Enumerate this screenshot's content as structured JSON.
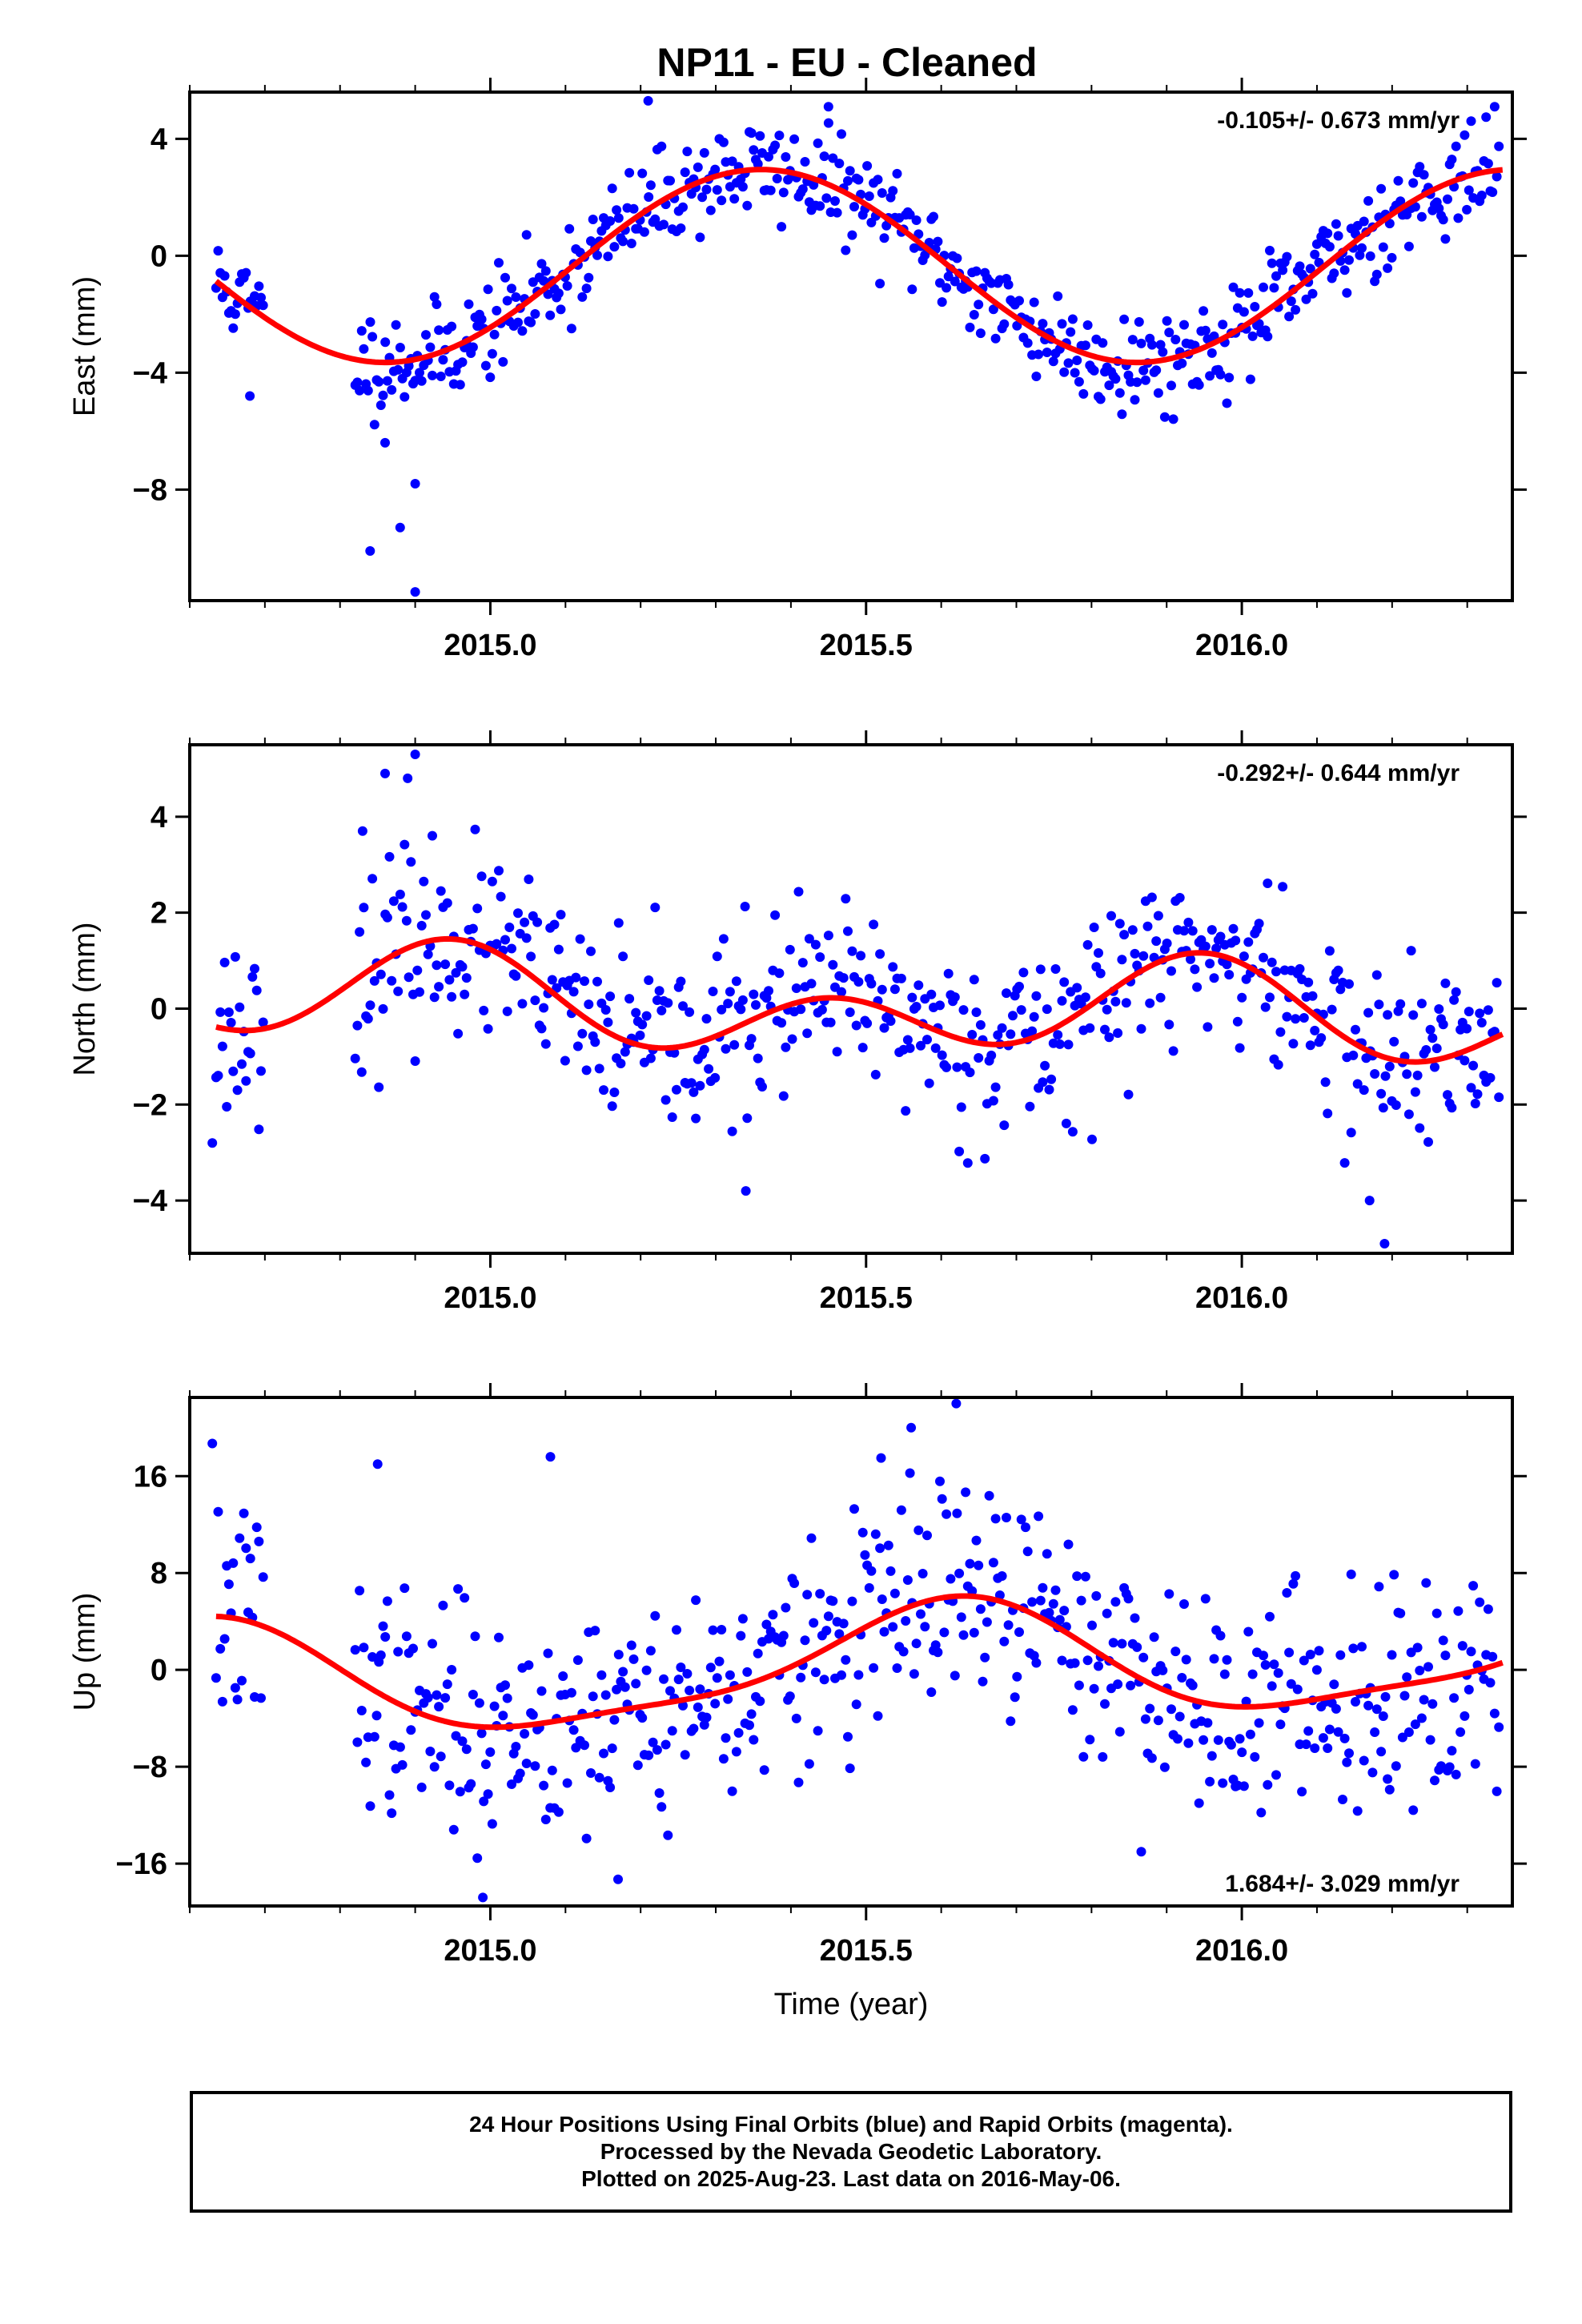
{
  "title": "NP11  - EU - Cleaned",
  "footer": {
    "lines": [
      "24 Hour Positions Using Final Orbits (blue) and Rapid Orbits (magenta).",
      "Processed by the Nevada Geodetic Laboratory.",
      "Plotted on 2025-Aug-23. Last data on 2016-May-06."
    ]
  },
  "colors": {
    "observations": "#0000ff",
    "model_fit": "#ff0000",
    "frame": "#000000"
  },
  "chart_data": [
    {
      "type": "scatter",
      "panel": "east",
      "ylabel": "East (mm)",
      "xlabel": "",
      "xlim": [
        2014.6,
        2016.36
      ],
      "ylim": [
        -11.8,
        5.6
      ],
      "xticks": [
        2015.0,
        2015.5,
        2016.0
      ],
      "xtick_labels": [
        "2015.0",
        "2015.5",
        "2016.0"
      ],
      "yticks": [
        4,
        0,
        -4,
        -8
      ],
      "yticks_labels": [
        "4",
        "0",
        "−4",
        "−8"
      ],
      "annotation": "-0.105+/- 0.673 mm/yr",
      "annotation_pos": "top-right",
      "grid": false,
      "model": {
        "offset": -0.35,
        "trend_per_year": 0.0,
        "annual_amp": 3.3,
        "annual_peak": 2015.36,
        "semi_amp": 0.0,
        "semi_peak": 2015.0
      },
      "noise_sd": 0.85,
      "seed": 11,
      "n_points": 600,
      "gap": [
        2014.7,
        2014.82
      ],
      "outliers": [
        [
          2014.84,
          -10.1
        ],
        [
          2014.9,
          -11.5
        ],
        [
          2014.88,
          -9.3
        ],
        [
          2014.9,
          -7.8
        ],
        [
          2014.86,
          -6.4
        ],
        [
          2014.68,
          -4.8
        ],
        [
          2015.21,
          5.3
        ],
        [
          2015.45,
          5.1
        ]
      ]
    },
    {
      "type": "scatter",
      "panel": "north",
      "ylabel": "North (mm)",
      "xlabel": "",
      "xlim": [
        2014.6,
        2016.36
      ],
      "ylim": [
        -5.1,
        5.5
      ],
      "xticks": [
        2015.0,
        2015.5,
        2016.0
      ],
      "xtick_labels": [
        "2015.0",
        "2015.5",
        "2016.0"
      ],
      "yticks": [
        4,
        2,
        0,
        -2,
        -4
      ],
      "yticks_labels": [
        "4",
        "2",
        "0",
        "−2",
        "−4"
      ],
      "annotation": "-0.292+/- 0.644 mm/yr",
      "annotation_pos": "top-right",
      "grid": false,
      "model": {
        "offset": 0.0,
        "trend_per_year": -0.29,
        "annual_amp": 0.55,
        "annual_peak": 2014.92,
        "semi_amp": 0.75,
        "semi_peak": 2014.95
      },
      "noise_sd": 0.95,
      "seed": 23,
      "n_points": 600,
      "gap": [
        2014.7,
        2014.82
      ],
      "outliers": [
        [
          2014.9,
          5.3
        ],
        [
          2014.89,
          4.8
        ],
        [
          2014.86,
          4.9
        ],
        [
          2014.83,
          3.7
        ],
        [
          2016.17,
          -4.0
        ],
        [
          2016.19,
          -4.9
        ],
        [
          2015.34,
          -3.8
        ],
        [
          2014.63,
          -2.8
        ]
      ]
    },
    {
      "type": "scatter",
      "panel": "up",
      "ylabel": "Up (mm)",
      "xlabel": "Time (year)",
      "xlim": [
        2014.6,
        2016.36
      ],
      "ylim": [
        -19.5,
        22.5
      ],
      "xticks": [
        2015.0,
        2015.5,
        2016.0
      ],
      "xtick_labels": [
        "2015.0",
        "2015.5",
        "2016.0"
      ],
      "yticks": [
        16,
        8,
        0,
        -8,
        -16
      ],
      "yticks_labels": [
        "16",
        "8",
        "0",
        "−8",
        "−16"
      ],
      "annotation": "1.684+/- 3.029 mm/yr",
      "annotation_pos": "bottom-right",
      "grid": false,
      "model": {
        "offset": 0.2,
        "trend_per_year": 1.68,
        "annual_amp": 4.6,
        "annual_peak": 2015.6,
        "semi_amp": 1.2,
        "semi_peak": 2014.65
      },
      "noise_sd": 4.6,
      "seed": 37,
      "n_points": 600,
      "gap": [
        2014.7,
        2014.82
      ],
      "outliers": [
        [
          2015.56,
          20.0
        ],
        [
          2015.62,
          22.0
        ],
        [
          2015.52,
          17.5
        ],
        [
          2014.99,
          -18.8
        ],
        [
          2015.17,
          -17.3
        ],
        [
          2014.63,
          18.7
        ],
        [
          2014.85,
          17.0
        ],
        [
          2015.08,
          17.6
        ]
      ]
    }
  ]
}
